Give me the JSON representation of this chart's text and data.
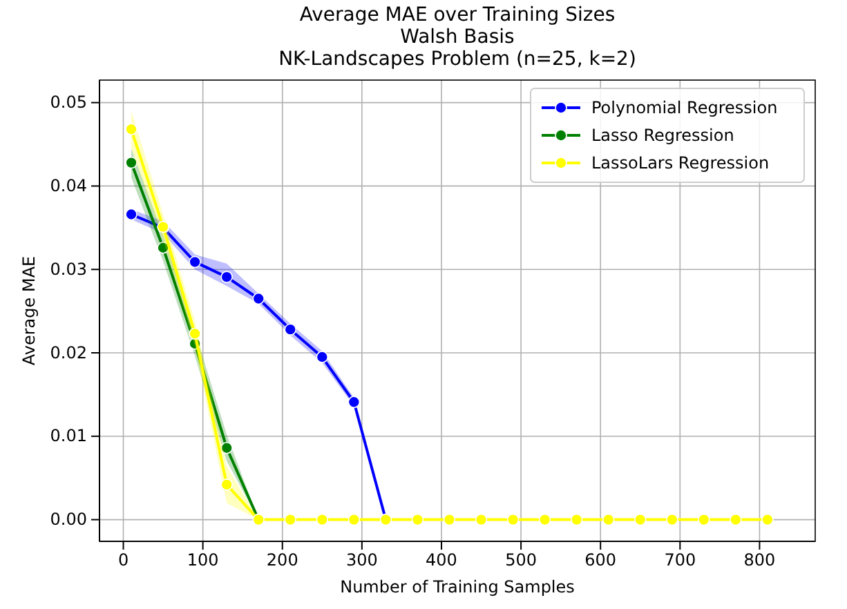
{
  "chart_data": {
    "type": "line",
    "title": "Average MAE over Training Sizes\nWalsh Basis\nNK-Landscapes Problem (n=25, k=2)",
    "xlabel": "Number of Training Samples",
    "ylabel": "Average MAE",
    "x": [
      10,
      50,
      90,
      130,
      170,
      210,
      250,
      290,
      330,
      370,
      410,
      450,
      490,
      530,
      570,
      610,
      650,
      690,
      730,
      770,
      810
    ],
    "series": [
      {
        "name": "Polynomial Regression",
        "color": "#0000ff",
        "values": [
          0.0366,
          0.035,
          0.0309,
          0.0291,
          0.0265,
          0.0228,
          0.0195,
          0.0141,
          0,
          null,
          null,
          null,
          null,
          null,
          null,
          null,
          null,
          null,
          null,
          null,
          null
        ],
        "lower": [
          0.036,
          0.0343,
          0.03,
          0.028,
          0.0259,
          0.0221,
          0.0188,
          0.0136,
          0,
          null,
          null,
          null,
          null,
          null,
          null,
          null,
          null,
          null,
          null,
          null,
          null
        ],
        "upper": [
          0.0372,
          0.0358,
          0.0318,
          0.0307,
          0.0271,
          0.0235,
          0.0202,
          0.0146,
          0,
          null,
          null,
          null,
          null,
          null,
          null,
          null,
          null,
          null,
          null,
          null,
          null
        ]
      },
      {
        "name": "Lasso Regression",
        "color": "#008000",
        "values": [
          0.0428,
          0.0326,
          0.0211,
          0.0086,
          0,
          null,
          null,
          null,
          null,
          null,
          null,
          null,
          null,
          null,
          null,
          null,
          null,
          null,
          null,
          null,
          null
        ],
        "lower": [
          0.041,
          0.031,
          0.0196,
          0.007,
          0,
          null,
          null,
          null,
          null,
          null,
          null,
          null,
          null,
          null,
          null,
          null,
          null,
          null,
          null,
          null,
          null
        ],
        "upper": [
          0.0445,
          0.0342,
          0.0226,
          0.0102,
          0,
          null,
          null,
          null,
          null,
          null,
          null,
          null,
          null,
          null,
          null,
          null,
          null,
          null,
          null,
          null,
          null
        ]
      },
      {
        "name": "LassoLars Regression",
        "color": "#ffff00",
        "values": [
          0.0468,
          0.0351,
          0.0223,
          0.0042,
          0,
          0,
          0,
          0,
          0,
          0,
          0,
          0,
          0,
          0,
          0,
          0,
          0,
          0,
          0,
          0,
          0
        ],
        "lower": [
          0.0446,
          0.0336,
          0.0208,
          0.002,
          0,
          0,
          0,
          0,
          0,
          0,
          0,
          0,
          0,
          0,
          0,
          0,
          0,
          0,
          0,
          0,
          0
        ],
        "upper": [
          0.049,
          0.0366,
          0.0238,
          0.0064,
          0,
          0,
          0,
          0,
          0,
          0,
          0,
          0,
          0,
          0,
          0,
          0,
          0,
          0,
          0,
          0,
          0
        ]
      }
    ],
    "xlim": [
      -30,
      870
    ],
    "ylim": [
      -0.0026,
      0.0527
    ],
    "xticks": [
      0,
      100,
      200,
      300,
      400,
      500,
      600,
      700,
      800
    ],
    "yticks": [
      {
        "value": 0,
        "label": "0.00"
      },
      {
        "value": 0.01,
        "label": "0.01"
      },
      {
        "value": 0.02,
        "label": "0.02"
      },
      {
        "value": 0.03,
        "label": "0.03"
      },
      {
        "value": 0.04,
        "label": "0.04"
      },
      {
        "value": 0.05,
        "label": "0.05"
      }
    ],
    "grid": true,
    "legend": "top right",
    "marker": "circle",
    "line_style": "solid"
  }
}
